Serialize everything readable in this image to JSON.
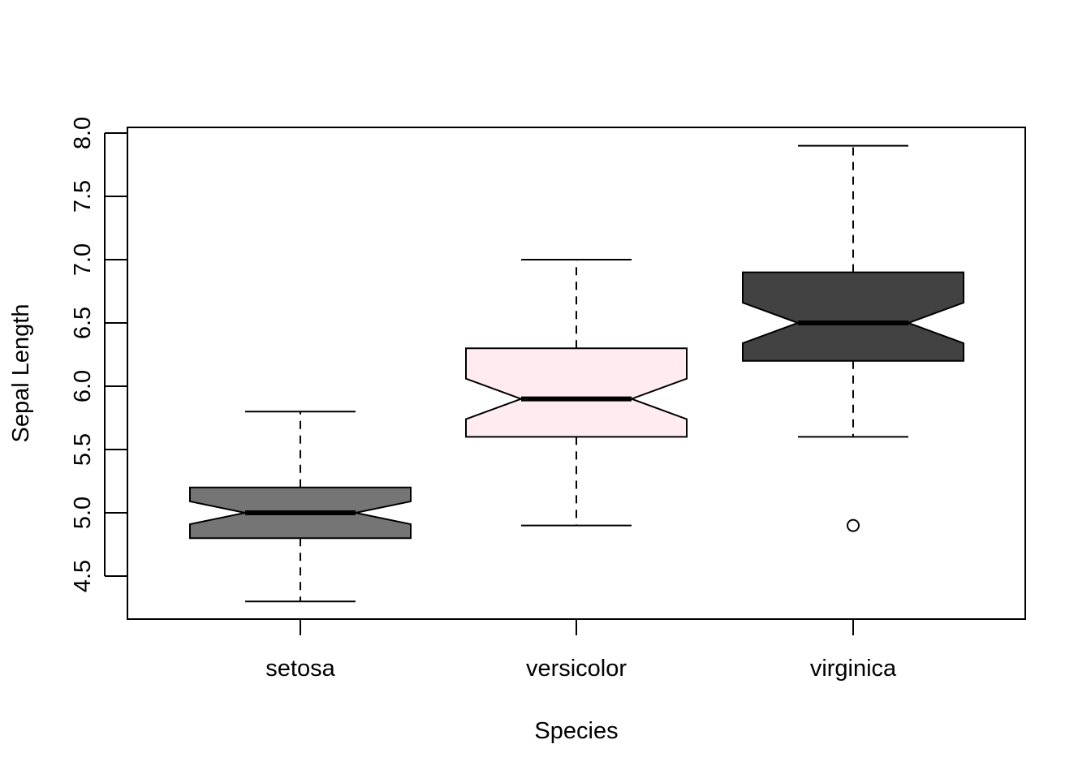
{
  "chart_data": {
    "type": "boxplot",
    "notched": true,
    "title": "",
    "xlabel": "Species",
    "ylabel": "Sepal Length",
    "ylim": [
      4.2,
      8.05
    ],
    "yticks": [
      "4.5",
      "5.0",
      "5.5",
      "6.0",
      "6.5",
      "7.0",
      "7.5",
      "8.0"
    ],
    "categories": [
      "setosa",
      "versicolor",
      "virginica"
    ],
    "series": [
      {
        "category": "setosa",
        "whisker_low": 4.3,
        "q1": 4.8,
        "median": 5.0,
        "q3": 5.2,
        "whisker_high": 5.8,
        "notch_low": 4.91,
        "notch_high": 5.09,
        "outliers": [],
        "fill": "#757575"
      },
      {
        "category": "versicolor",
        "whisker_low": 4.9,
        "q1": 5.6,
        "median": 5.9,
        "q3": 6.3,
        "whisker_high": 7.0,
        "notch_low": 5.74,
        "notch_high": 6.06,
        "outliers": [],
        "fill": "#ffebf0"
      },
      {
        "category": "virginica",
        "whisker_low": 5.6,
        "q1": 6.2,
        "median": 6.5,
        "q3": 6.9,
        "whisker_high": 7.9,
        "notch_low": 6.34,
        "notch_high": 6.66,
        "outliers": [
          4.9
        ],
        "fill": "#424242"
      }
    ],
    "grid": false,
    "legend": "none"
  }
}
